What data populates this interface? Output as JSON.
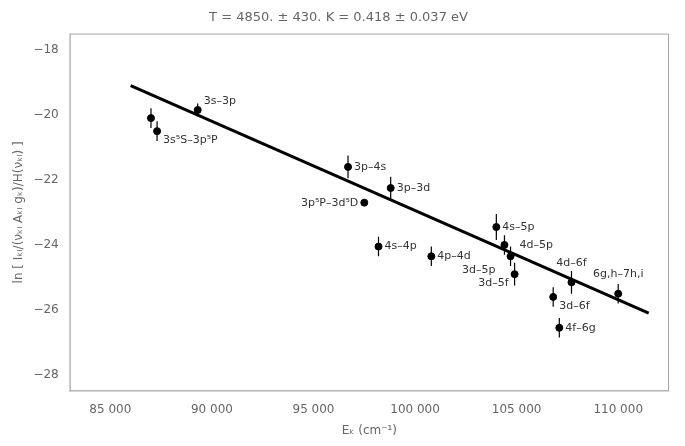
{
  "chart_data": {
    "type": "scatter",
    "title": "T = 4850. ± 430. K = 0.418 ± 0.037 eV",
    "xlabel": "Eₖ (cm⁻¹)",
    "ylabel": "ln [ Iₖᵢ/(νₖᵢ Aₖᵢ gₖ)/H(νₖᵢ) ]",
    "xlim": [
      83000,
      112500
    ],
    "ylim": [
      -28.5,
      -17.5
    ],
    "xticks": [
      {
        "value": 85000,
        "label": "85 000"
      },
      {
        "value": 90000,
        "label": "90 000"
      },
      {
        "value": 95000,
        "label": "95 000"
      },
      {
        "value": 100000,
        "label": "100 000"
      },
      {
        "value": 105000,
        "label": "105 000"
      },
      {
        "value": 110000,
        "label": "110 000"
      }
    ],
    "yticks": [
      {
        "value": -18,
        "label": "−18"
      },
      {
        "value": -20,
        "label": "−20"
      },
      {
        "value": -22,
        "label": "−22"
      },
      {
        "value": -24,
        "label": "−24"
      },
      {
        "value": -26,
        "label": "−26"
      },
      {
        "value": -28,
        "label": "−28"
      }
    ],
    "grid": false,
    "series": [
      {
        "type": "line",
        "x": [
          86000,
          111500
        ],
        "values": [
          -19.1,
          -26.1
        ],
        "color": "#000000",
        "line_style": "solid",
        "marker": "none"
      },
      {
        "type": "scatter",
        "x": [
          87000,
          87300,
          89300,
          96700,
          98800,
          97500,
          98200,
          100800,
          104000,
          104400,
          104700,
          104900,
          106800,
          107100,
          107700,
          110000
        ],
        "values": [
          -20.1,
          -20.5,
          -19.85,
          -21.6,
          -22.25,
          -22.7,
          -24.05,
          -24.35,
          -23.45,
          -24.0,
          -24.35,
          -24.9,
          -25.6,
          -26.55,
          -25.15,
          -25.5
        ],
        "yerr": [
          0.3,
          0.3,
          0.2,
          0.35,
          0.35,
          0.0,
          0.3,
          0.3,
          0.4,
          0.3,
          0.3,
          0.35,
          0.3,
          0.3,
          0.35,
          0.3
        ],
        "labels": [
          null,
          "3s⁵S–3p⁵P",
          "3s–3p",
          "3p–4s",
          "3p–3d",
          "3p⁵P–3d⁵D",
          "4s–4p",
          "4p–4d",
          "4s–5p",
          "4d–5p",
          "3d–5p",
          "3d–5f",
          "3d–6f",
          "4f–6g",
          "4d–6f",
          "6g,h–7h,i"
        ],
        "color": "#000000",
        "marker": "circle"
      }
    ]
  }
}
